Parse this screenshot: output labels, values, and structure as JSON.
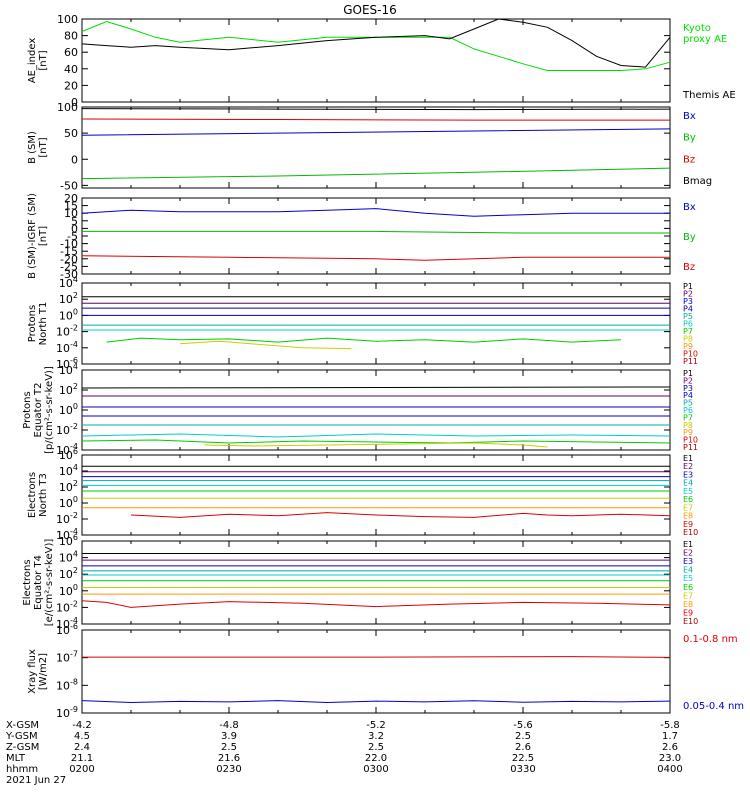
{
  "title": "GOES-16",
  "chart_data": [
    {
      "type": "line",
      "ylabel": "AE_index\n[nT]",
      "yscale": "linear",
      "ylim": [
        0,
        100
      ],
      "yticks": [
        "0",
        "20",
        "40",
        "60",
        "80",
        "100"
      ],
      "series": [
        {
          "name": "Kyoto\nproxy AE",
          "color": "#00dd00",
          "x": [
            0,
            5,
            10,
            15,
            20,
            30,
            40,
            50,
            60,
            70,
            75,
            80,
            85,
            90,
            95,
            100,
            105,
            110,
            115,
            120
          ],
          "y": [
            85,
            97,
            88,
            78,
            72,
            78,
            72,
            78,
            78,
            78,
            78,
            64,
            55,
            46,
            38,
            38,
            38,
            38,
            40,
            48
          ]
        },
        {
          "name": "Themis AE",
          "color": "#000000",
          "x": [
            0,
            5,
            10,
            15,
            20,
            30,
            40,
            50,
            60,
            70,
            75,
            80,
            85,
            90,
            95,
            100,
            105,
            110,
            115,
            120
          ],
          "y": [
            70,
            68,
            66,
            68,
            66,
            63,
            68,
            74,
            78,
            80,
            76,
            88,
            100,
            96,
            90,
            74,
            55,
            44,
            42,
            78
          ]
        }
      ]
    },
    {
      "type": "line",
      "ylabel": "B (SM)\n[nT]",
      "yscale": "linear",
      "ylim": [
        -55,
        100
      ],
      "yticks": [
        "-50",
        "0",
        "50",
        "100"
      ],
      "series": [
        {
          "name": "Bx",
          "color": "#0000cc",
          "x": [
            0,
            40,
            80,
            120
          ],
          "y": [
            46,
            50,
            54,
            58
          ]
        },
        {
          "name": "By",
          "color": "#00bb00",
          "x": [
            0,
            40,
            80,
            120
          ],
          "y": [
            -37,
            -32,
            -25,
            -17
          ]
        },
        {
          "name": "Bz",
          "color": "#dd0000",
          "x": [
            0,
            40,
            80,
            120
          ],
          "y": [
            77,
            76,
            75,
            75
          ]
        },
        {
          "name": "Bmag",
          "color": "#000000",
          "x": [
            0,
            40,
            80,
            120
          ],
          "y": [
            97,
            96,
            95,
            96
          ]
        }
      ]
    },
    {
      "type": "line",
      "ylabel": "B (SM)-IGRF (SM)\n[nT]",
      "yscale": "linear",
      "ylim": [
        -30,
        20
      ],
      "yticks": [
        "-30",
        "-25",
        "-20",
        "-15",
        "-10",
        "-5",
        "0",
        "5",
        "10",
        "15",
        "20"
      ],
      "series": [
        {
          "name": "Bx",
          "color": "#0000cc",
          "x": [
            0,
            10,
            20,
            30,
            40,
            50,
            60,
            70,
            80,
            90,
            100,
            110,
            120
          ],
          "y": [
            10,
            12,
            11,
            11,
            11,
            12,
            13,
            10,
            8,
            9,
            10,
            10,
            10
          ]
        },
        {
          "name": "By",
          "color": "#00bb00",
          "x": [
            0,
            30,
            60,
            90,
            120
          ],
          "y": [
            -2,
            -2,
            -2,
            -3,
            -3
          ]
        },
        {
          "name": "Bz",
          "color": "#dd0000",
          "x": [
            0,
            30,
            60,
            70,
            90,
            120
          ],
          "y": [
            -18,
            -19,
            -20,
            -21,
            -19,
            -19
          ]
        }
      ]
    },
    {
      "type": "line",
      "ylabel": "Protons\nNorth T1",
      "yscale": "log",
      "ylim": [
        -6,
        4
      ],
      "yticks": [
        "10^-6",
        "10^-4",
        "10^-2",
        "10^0",
        "10^2",
        "10^4"
      ],
      "series": [
        {
          "name": "P1",
          "color": "#000000",
          "x": [
            0,
            120
          ],
          "y": [
            2.3,
            2.3
          ]
        },
        {
          "name": "P2",
          "color": "#660066",
          "x": [
            0,
            120
          ],
          "y": [
            1.5,
            1.5
          ]
        },
        {
          "name": "P3",
          "color": "#0000cc",
          "x": [
            0,
            120
          ],
          "y": [
            0.9,
            0.9
          ]
        },
        {
          "name": "P4",
          "color": "#0000cc",
          "x": [
            0,
            120
          ],
          "y": [
            0.0,
            0.0
          ]
        },
        {
          "name": "P5",
          "color": "#00aaaa",
          "x": [
            0,
            120
          ],
          "y": [
            -1.2,
            -1.2
          ]
        },
        {
          "name": "P6",
          "color": "#00cccc",
          "x": [
            0,
            120
          ],
          "y": [
            -1.8,
            -1.8
          ]
        },
        {
          "name": "P7",
          "color": "#00cc00",
          "x": [
            5,
            12,
            20,
            30,
            40,
            50,
            60,
            70,
            80,
            90,
            100,
            110
          ],
          "y": [
            -3.3,
            -2.8,
            -3.0,
            -2.9,
            -3.3,
            -2.8,
            -3.2,
            -3.0,
            -3.3,
            -2.9,
            -3.3,
            -3.0
          ]
        },
        {
          "name": "P8",
          "color": "#cccc00",
          "x": [
            20,
            28,
            45,
            55
          ],
          "y": [
            -3.5,
            -3.2,
            -4.0,
            -4.1
          ]
        },
        {
          "name": "P9",
          "color": "#ff9900",
          "x": [],
          "y": []
        },
        {
          "name": "P10",
          "color": "#dd0000",
          "x": [],
          "y": []
        },
        {
          "name": "P11",
          "color": "#aa0000",
          "x": [],
          "y": []
        }
      ]
    },
    {
      "type": "line",
      "ylabel": "Protons\nEquator T2\n[p/(cm²-s-sr-keV)]",
      "yscale": "log",
      "ylim": [
        -4,
        4
      ],
      "yticks": [
        "10^-4",
        "10^-2",
        "10^0",
        "10^2",
        "10^4"
      ],
      "series": [
        {
          "name": "P1",
          "color": "#000000",
          "x": [
            0,
            120
          ],
          "y": [
            2.2,
            2.3
          ]
        },
        {
          "name": "P2",
          "color": "#660066",
          "x": [
            0,
            120
          ],
          "y": [
            1.4,
            1.4
          ]
        },
        {
          "name": "P3",
          "color": "#0000cc",
          "x": [
            0,
            120
          ],
          "y": [
            0.3,
            0.3
          ]
        },
        {
          "name": "P4",
          "color": "#0000cc",
          "x": [
            0,
            120
          ],
          "y": [
            -0.6,
            -0.6
          ]
        },
        {
          "name": "P5",
          "color": "#00aaaa",
          "x": [
            0,
            120
          ],
          "y": [
            -1.5,
            -1.5
          ]
        },
        {
          "name": "P6",
          "color": "#00cccc",
          "x": [
            0,
            20,
            40,
            60,
            80,
            100,
            120
          ],
          "y": [
            -2.6,
            -2.4,
            -2.7,
            -2.4,
            -2.6,
            -2.5,
            -2.6
          ]
        },
        {
          "name": "P7",
          "color": "#00cc00",
          "x": [
            0,
            15,
            30,
            45,
            60,
            75,
            90,
            105,
            120
          ],
          "y": [
            -3.1,
            -3.0,
            -3.3,
            -3.1,
            -3.2,
            -3.3,
            -3.1,
            -3.2,
            -3.3
          ]
        },
        {
          "name": "P8",
          "color": "#cccc00",
          "x": [
            25,
            35,
            80,
            90,
            95
          ],
          "y": [
            -3.5,
            -3.6,
            -3.3,
            -3.5,
            -3.7
          ]
        },
        {
          "name": "P9",
          "color": "#ff9900",
          "x": [],
          "y": []
        },
        {
          "name": "P10",
          "color": "#dd0000",
          "x": [],
          "y": []
        },
        {
          "name": "P11",
          "color": "#aa0000",
          "x": [],
          "y": []
        }
      ]
    },
    {
      "type": "line",
      "ylabel": "Electrons\nNorth T3",
      "yscale": "log",
      "ylim": [
        -4,
        6
      ],
      "yticks": [
        "10^-4",
        "10^-2",
        "10^0",
        "10^2",
        "10^4",
        "10^6"
      ],
      "series": [
        {
          "name": "E1",
          "color": "#000000",
          "x": [
            0,
            120
          ],
          "y": [
            4.6,
            4.6
          ]
        },
        {
          "name": "E2",
          "color": "#660066",
          "x": [
            0,
            120
          ],
          "y": [
            3.9,
            3.9
          ]
        },
        {
          "name": "E3",
          "color": "#0000cc",
          "x": [
            0,
            120
          ],
          "y": [
            3.3,
            3.3
          ]
        },
        {
          "name": "E4",
          "color": "#00aaaa",
          "x": [
            0,
            120
          ],
          "y": [
            2.8,
            2.8
          ]
        },
        {
          "name": "E5",
          "color": "#00cccc",
          "x": [
            0,
            120
          ],
          "y": [
            2.2,
            2.2
          ]
        },
        {
          "name": "E6",
          "color": "#00cc00",
          "x": [
            0,
            120
          ],
          "y": [
            1.5,
            1.5
          ]
        },
        {
          "name": "E7",
          "color": "#cccc00",
          "x": [
            0,
            120
          ],
          "y": [
            0.6,
            0.6
          ]
        },
        {
          "name": "E8",
          "color": "#ff9900",
          "x": [
            0,
            120
          ],
          "y": [
            -0.6,
            -0.6
          ]
        },
        {
          "name": "E9",
          "color": "#dd0000",
          "x": [
            10,
            20,
            30,
            40,
            50,
            60,
            70,
            80,
            90,
            95,
            100,
            110,
            120
          ],
          "y": [
            -1.5,
            -1.8,
            -1.4,
            -1.6,
            -1.2,
            -1.5,
            -1.7,
            -1.8,
            -1.3,
            -1.5,
            -1.6,
            -1.4,
            -1.6
          ]
        },
        {
          "name": "E10",
          "color": "#aa0000",
          "x": [],
          "y": []
        }
      ]
    },
    {
      "type": "line",
      "ylabel": "Electrons\nEquator T4\n[e/(cm²-s-sr-keV)]",
      "yscale": "log",
      "ylim": [
        -4,
        6
      ],
      "yticks": [
        "10^-4",
        "10^-2",
        "10^0",
        "10^2",
        "10^4",
        "10^6"
      ],
      "series": [
        {
          "name": "E1",
          "color": "#000000",
          "x": [
            0,
            120
          ],
          "y": [
            4.5,
            4.5
          ]
        },
        {
          "name": "E2",
          "color": "#660066",
          "x": [
            0,
            120
          ],
          "y": [
            3.7,
            3.7
          ]
        },
        {
          "name": "E3",
          "color": "#0000cc",
          "x": [
            0,
            120
          ],
          "y": [
            3.0,
            3.0
          ]
        },
        {
          "name": "E4",
          "color": "#00aaaa",
          "x": [
            0,
            120
          ],
          "y": [
            2.4,
            2.4
          ]
        },
        {
          "name": "E5",
          "color": "#00cccc",
          "x": [
            0,
            120
          ],
          "y": [
            1.9,
            1.9
          ]
        },
        {
          "name": "E6",
          "color": "#00cc00",
          "x": [
            0,
            120
          ],
          "y": [
            1.2,
            1.2
          ]
        },
        {
          "name": "E7",
          "color": "#cccc00",
          "x": [
            0,
            120
          ],
          "y": [
            0.4,
            0.4
          ]
        },
        {
          "name": "E8",
          "color": "#ff9900",
          "x": [
            0,
            120
          ],
          "y": [
            -0.4,
            -0.4
          ]
        },
        {
          "name": "E9",
          "color": "#dd0000",
          "x": [
            0,
            5,
            10,
            20,
            30,
            45,
            60,
            75,
            90,
            105,
            120
          ],
          "y": [
            -1.2,
            -1.4,
            -2.0,
            -1.6,
            -1.3,
            -1.5,
            -1.9,
            -1.6,
            -1.4,
            -1.5,
            -1.7
          ]
        },
        {
          "name": "E10",
          "color": "#aa0000",
          "x": [],
          "y": []
        }
      ]
    },
    {
      "type": "line",
      "ylabel": "Xray flux\n[W/m2]",
      "yscale": "log",
      "ylim": [
        -9,
        -6
      ],
      "yticks": [
        "10^-9",
        "10^-8",
        "10^-7",
        "10^-6"
      ],
      "series": [
        {
          "name": "0.1-0.8 nm",
          "color": "#dd0000",
          "x": [
            0,
            60,
            100,
            120
          ],
          "y": [
            -6.98,
            -6.98,
            -6.96,
            -6.99
          ]
        },
        {
          "name": "0.05-0.4 nm",
          "color": "#0000cc",
          "x": [
            0,
            10,
            20,
            30,
            40,
            50,
            60,
            70,
            80,
            90,
            100,
            110,
            120
          ],
          "y": [
            -8.55,
            -8.62,
            -8.58,
            -8.6,
            -8.55,
            -8.62,
            -8.57,
            -8.6,
            -8.56,
            -8.61,
            -8.58,
            -8.6,
            -8.57
          ]
        }
      ]
    }
  ],
  "xaxis": {
    "ticks": [
      {
        "x": 0,
        "xgsm": "-4.2",
        "ygsm": "4.5",
        "zgsm": "2.4",
        "mlt": "21.1",
        "hhmm": "0200"
      },
      {
        "x": 30,
        "xgsm": "-4.8",
        "ygsm": "3.9",
        "zgsm": "2.5",
        "mlt": "21.6",
        "hhmm": "0230"
      },
      {
        "x": 60,
        "xgsm": "-5.2",
        "ygsm": "3.2",
        "zgsm": "2.5",
        "mlt": "22.0",
        "hhmm": "0300"
      },
      {
        "x": 90,
        "xgsm": "-5.6",
        "ygsm": "2.5",
        "zgsm": "2.6",
        "mlt": "22.5",
        "hhmm": "0330"
      },
      {
        "x": 120,
        "xgsm": "-5.8",
        "ygsm": "1.7",
        "zgsm": "2.6",
        "mlt": "23.0",
        "hhmm": "0400"
      }
    ],
    "row_labels": [
      "X-GSM",
      "Y-GSM",
      "Z-GSM",
      "MLT",
      "hhmm"
    ],
    "date": "2021 Jun 27"
  }
}
